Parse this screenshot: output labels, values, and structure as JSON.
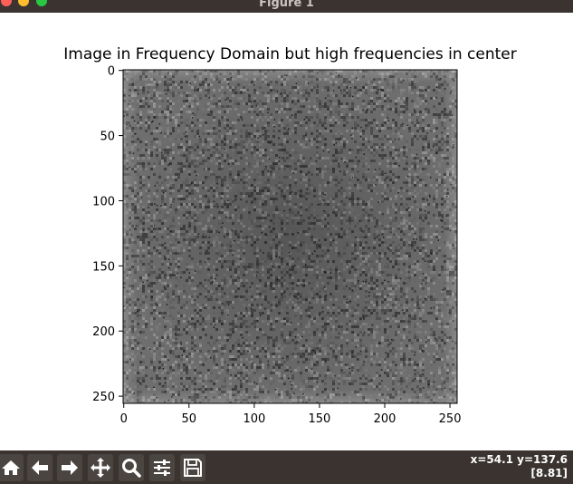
{
  "window": {
    "title": "Figure 1"
  },
  "chart_data": {
    "type": "heatmap",
    "title": "Image in Frequency Domain but high frequencies in center",
    "xlabel": "",
    "ylabel": "",
    "xlim": [
      0,
      255
    ],
    "ylim": [
      255,
      0
    ],
    "xticks": [
      0,
      50,
      100,
      150,
      200,
      250
    ],
    "yticks": [
      0,
      50,
      100,
      150,
      200,
      250
    ],
    "xtick_labels": [
      "0",
      "50",
      "100",
      "150",
      "200",
      "250"
    ],
    "ytick_labels": [
      "0",
      "50",
      "100",
      "150",
      "200",
      "250"
    ],
    "colormap": "gray",
    "image_size": [
      256,
      256
    ],
    "description_colors": {
      "base": "#6e6e6e",
      "center": "#555555",
      "edge": "#8a8a8a"
    }
  },
  "toolbar": {
    "buttons": [
      {
        "name": "home-button",
        "icon": "home-icon"
      },
      {
        "name": "back-button",
        "icon": "arrow-left-icon"
      },
      {
        "name": "forward-button",
        "icon": "arrow-right-icon"
      },
      {
        "name": "pan-button",
        "icon": "move-icon"
      },
      {
        "name": "zoom-button",
        "icon": "magnifier-icon"
      },
      {
        "name": "configure-subplots-button",
        "icon": "sliders-icon"
      },
      {
        "name": "save-button",
        "icon": "floppy-disk-icon"
      }
    ],
    "coords_line1": "x=54.1 y=137.6",
    "coords_line2": "[8.81]"
  },
  "colors": {
    "titlebar": "#3a3330",
    "toolbar": "#3a3330",
    "button": "#4b4542",
    "icon": "#ffffff"
  }
}
